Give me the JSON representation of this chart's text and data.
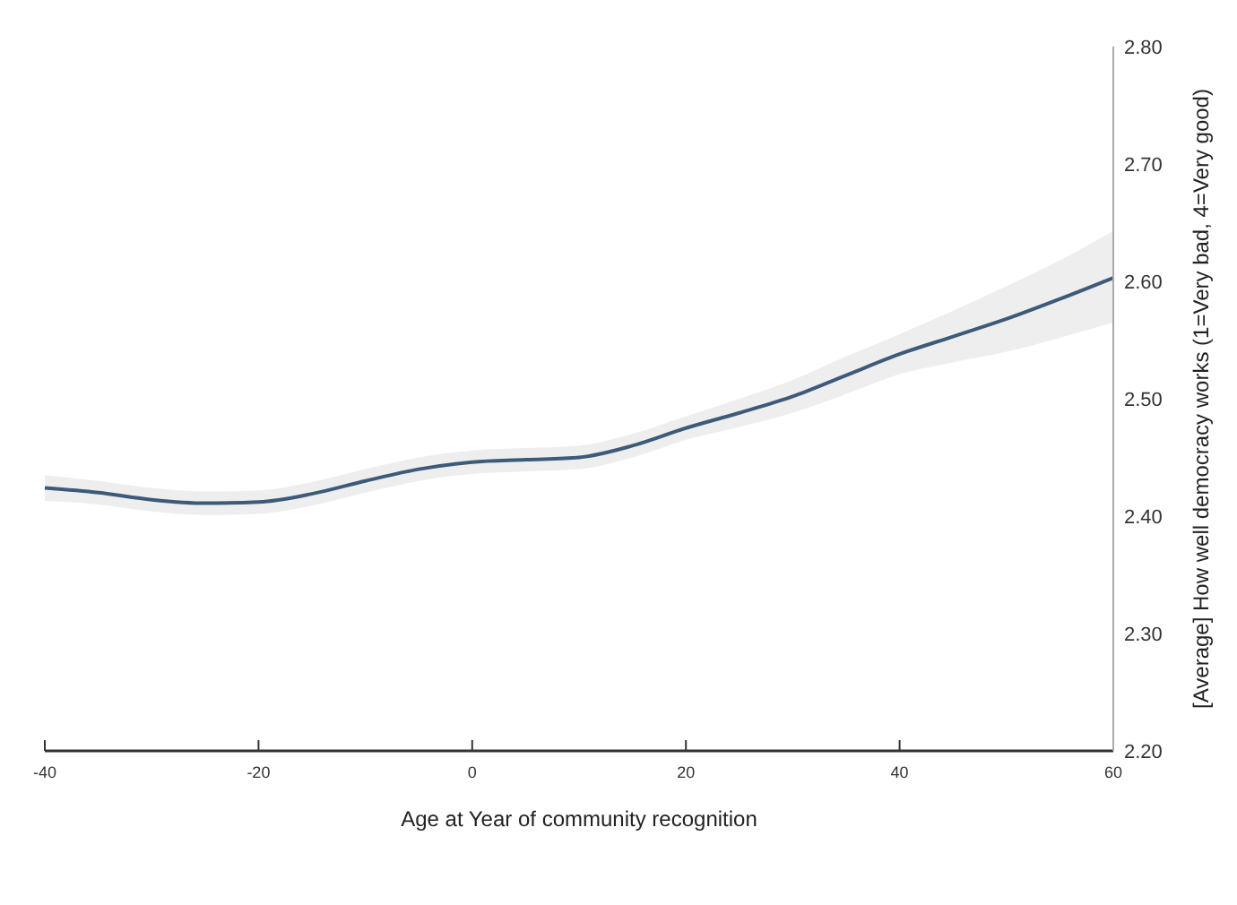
{
  "chart_data": {
    "type": "line",
    "xlabel": "Age at Year of community recognition",
    "ylabel": "[Average] How well democracy works (1=Very bad, 4=Very good)",
    "x": [
      -40,
      -35,
      -30,
      -25,
      -20,
      -15,
      -10,
      -5,
      0,
      5,
      10,
      15,
      20,
      25,
      30,
      35,
      40,
      45,
      50,
      55,
      60
    ],
    "series": [
      {
        "color": "#3d5a7a",
        "values": [
          2.424,
          2.42,
          2.414,
          2.411,
          2.412,
          2.419,
          2.43,
          2.44,
          2.446,
          2.448,
          2.45,
          2.46,
          2.475,
          2.488,
          2.502,
          2.52,
          2.538,
          2.553,
          2.568,
          2.585,
          2.603
        ],
        "lower": [
          2.413,
          2.41,
          2.404,
          2.401,
          2.402,
          2.409,
          2.42,
          2.43,
          2.436,
          2.438,
          2.44,
          2.45,
          2.465,
          2.476,
          2.488,
          2.504,
          2.521,
          2.531,
          2.54,
          2.552,
          2.565
        ],
        "upper": [
          2.435,
          2.43,
          2.424,
          2.421,
          2.422,
          2.429,
          2.44,
          2.45,
          2.456,
          2.458,
          2.46,
          2.47,
          2.485,
          2.5,
          2.516,
          2.536,
          2.555,
          2.575,
          2.596,
          2.618,
          2.643
        ]
      }
    ],
    "xlim": [
      -40,
      60
    ],
    "xticks": [
      -40,
      -20,
      0,
      20,
      40,
      60
    ],
    "ylim": [
      2.2,
      2.8
    ],
    "yticks": [
      {
        "value": 2.2,
        "label": "2.20"
      },
      {
        "value": 2.3,
        "label": "2.30"
      },
      {
        "value": 2.4,
        "label": "2.40"
      },
      {
        "value": 2.5,
        "label": "2.50"
      },
      {
        "value": 2.6,
        "label": "2.60"
      },
      {
        "value": 2.7,
        "label": "2.70"
      },
      {
        "value": 2.8,
        "label": "2.80"
      }
    ],
    "grid": false
  }
}
